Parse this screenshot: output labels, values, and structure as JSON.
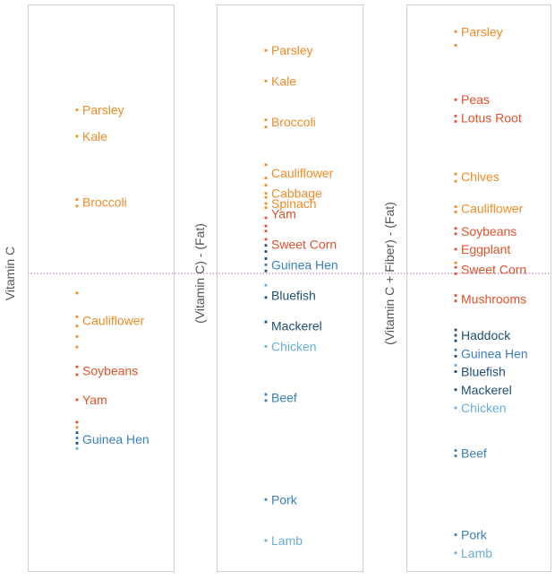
{
  "colors": {
    "orange": "#f28b25",
    "redorange": "#e2512a",
    "darkblue": "#1f4e79",
    "midblue": "#3a7fc1",
    "lightblue": "#6aaed6",
    "border": "#d0d0d0",
    "zero": "#9b4fa0"
  },
  "chart_data": [
    {
      "type": "scatter",
      "ylabel": "Vitamin C",
      "ylim": [
        -1.4,
        2.9
      ],
      "labels": [
        {
          "text": "Parsley",
          "y": 2.1,
          "color": "orange"
        },
        {
          "text": "Kale",
          "y": 1.9,
          "color": "orange"
        },
        {
          "text": "Broccoli",
          "y": 1.4,
          "color": "orange"
        },
        {
          "text": "Cauliflower",
          "y": 0.5,
          "color": "orange"
        },
        {
          "text": "Soybeans",
          "y": 0.12,
          "color": "redorange"
        },
        {
          "text": "Yam",
          "y": -0.1,
          "color": "redorange"
        },
        {
          "text": "Guinea Hen",
          "y": -0.4,
          "color": "midblue"
        }
      ],
      "points": [
        {
          "y": 2.1,
          "color": "orange"
        },
        {
          "y": 1.9,
          "color": "orange"
        },
        {
          "y": 1.42,
          "color": "orange"
        },
        {
          "y": 1.37,
          "color": "orange"
        },
        {
          "y": 0.71,
          "color": "orange"
        },
        {
          "y": 0.53,
          "color": "orange"
        },
        {
          "y": 0.46,
          "color": "orange"
        },
        {
          "y": 0.38,
          "color": "orange"
        },
        {
          "y": 0.3,
          "color": "orange"
        },
        {
          "y": 0.15,
          "color": "redorange"
        },
        {
          "y": 0.09,
          "color": "redorange"
        },
        {
          "y": -0.1,
          "color": "redorange"
        },
        {
          "y": -0.27,
          "color": "redorange"
        },
        {
          "y": -0.31,
          "color": "orange"
        },
        {
          "y": -0.35,
          "color": "darkblue"
        },
        {
          "y": -0.39,
          "color": "midblue"
        },
        {
          "y": -0.43,
          "color": "darkblue"
        },
        {
          "y": -0.47,
          "color": "lightblue"
        }
      ]
    },
    {
      "type": "scatter",
      "ylabel": "(Vitamin C) - (Fat)",
      "ylim": [
        -3.3,
        2.25
      ],
      "labels": [
        {
          "text": "Parsley",
          "y": 1.8,
          "color": "orange"
        },
        {
          "text": "Kale",
          "y": 1.5,
          "color": "orange"
        },
        {
          "text": "Broccoli",
          "y": 1.1,
          "color": "orange"
        },
        {
          "text": "Cauliflower",
          "y": 0.6,
          "color": "orange"
        },
        {
          "text": "Cabbage",
          "y": 0.4,
          "color": "orange"
        },
        {
          "text": "Spinach",
          "y": 0.3,
          "color": "orange"
        },
        {
          "text": "Yam",
          "y": 0.2,
          "color": "redorange"
        },
        {
          "text": "Sweet Corn",
          "y": -0.1,
          "color": "redorange"
        },
        {
          "text": "Guinea Hen",
          "y": -0.3,
          "color": "midblue"
        },
        {
          "text": "Bluefish",
          "y": -0.6,
          "color": "darkblue"
        },
        {
          "text": "Mackerel",
          "y": -0.9,
          "color": "darkblue"
        },
        {
          "text": "Chicken",
          "y": -1.1,
          "color": "lightblue"
        },
        {
          "text": "Beef",
          "y": -1.6,
          "color": "midblue"
        },
        {
          "text": "Pork",
          "y": -2.6,
          "color": "midblue"
        },
        {
          "text": "Lamb",
          "y": -3.0,
          "color": "lightblue"
        }
      ],
      "points": [
        {
          "y": 1.8,
          "color": "orange"
        },
        {
          "y": 1.5,
          "color": "orange"
        },
        {
          "y": 1.12,
          "color": "orange"
        },
        {
          "y": 1.05,
          "color": "orange"
        },
        {
          "y": 0.68,
          "color": "orange"
        },
        {
          "y": 0.55,
          "color": "orange"
        },
        {
          "y": 0.48,
          "color": "orange"
        },
        {
          "y": 0.4,
          "color": "orange"
        },
        {
          "y": 0.36,
          "color": "orange"
        },
        {
          "y": 0.3,
          "color": "orange"
        },
        {
          "y": 0.26,
          "color": "orange"
        },
        {
          "y": 0.16,
          "color": "redorange"
        },
        {
          "y": 0.08,
          "color": "redorange"
        },
        {
          "y": 0.03,
          "color": "redorange"
        },
        {
          "y": -0.05,
          "color": "redorange"
        },
        {
          "y": -0.11,
          "color": "darkblue"
        },
        {
          "y": -0.17,
          "color": "darkblue"
        },
        {
          "y": -0.24,
          "color": "darkblue"
        },
        {
          "y": -0.3,
          "color": "midblue"
        },
        {
          "y": -0.36,
          "color": "darkblue"
        },
        {
          "y": -0.5,
          "color": "lightblue"
        },
        {
          "y": -0.62,
          "color": "darkblue"
        },
        {
          "y": -0.86,
          "color": "darkblue"
        },
        {
          "y": -1.1,
          "color": "lightblue"
        },
        {
          "y": -1.57,
          "color": "midblue"
        },
        {
          "y": -1.63,
          "color": "midblue"
        },
        {
          "y": -2.6,
          "color": "midblue"
        },
        {
          "y": -3.0,
          "color": "lightblue"
        }
      ]
    },
    {
      "type": "scatter",
      "ylabel": "(Vitamin C + Fiber) - (Fat)",
      "ylim": [
        -3.3,
        2.95
      ],
      "labels": [
        {
          "text": "Parsley",
          "y": 2.65,
          "color": "orange"
        },
        {
          "text": "Peas",
          "y": 1.9,
          "color": "redorange"
        },
        {
          "text": "Lotus Root",
          "y": 1.7,
          "color": "redorange"
        },
        {
          "text": "Chives",
          "y": 1.05,
          "color": "orange"
        },
        {
          "text": "Cauliflower",
          "y": 0.7,
          "color": "orange"
        },
        {
          "text": "Soybeans",
          "y": 0.45,
          "color": "redorange"
        },
        {
          "text": "Eggplant",
          "y": 0.25,
          "color": "redorange"
        },
        {
          "text": "Sweet Corn",
          "y": 0.03,
          "color": "redorange"
        },
        {
          "text": "Mushrooms",
          "y": -0.3,
          "color": "redorange"
        },
        {
          "text": "Haddock",
          "y": -0.7,
          "color": "darkblue"
        },
        {
          "text": "Guinea Hen",
          "y": -0.9,
          "color": "midblue"
        },
        {
          "text": "Bluefish",
          "y": -1.1,
          "color": "darkblue"
        },
        {
          "text": "Mackerel",
          "y": -1.3,
          "color": "darkblue"
        },
        {
          "text": "Chicken",
          "y": -1.5,
          "color": "lightblue"
        },
        {
          "text": "Beef",
          "y": -2.0,
          "color": "midblue"
        },
        {
          "text": "Pork",
          "y": -2.9,
          "color": "midblue"
        },
        {
          "text": "Lamb",
          "y": -3.1,
          "color": "lightblue"
        }
      ],
      "points": [
        {
          "y": 2.65,
          "color": "orange"
        },
        {
          "y": 2.5,
          "color": "orange"
        },
        {
          "y": 1.9,
          "color": "redorange"
        },
        {
          "y": 1.72,
          "color": "redorange"
        },
        {
          "y": 1.66,
          "color": "redorange"
        },
        {
          "y": 1.08,
          "color": "orange"
        },
        {
          "y": 1.0,
          "color": "orange"
        },
        {
          "y": 0.72,
          "color": "orange"
        },
        {
          "y": 0.66,
          "color": "orange"
        },
        {
          "y": 0.48,
          "color": "redorange"
        },
        {
          "y": 0.42,
          "color": "redorange"
        },
        {
          "y": 0.25,
          "color": "redorange"
        },
        {
          "y": 0.1,
          "color": "orange"
        },
        {
          "y": 0.05,
          "color": "redorange"
        },
        {
          "y": -0.02,
          "color": "redorange"
        },
        {
          "y": -0.26,
          "color": "redorange"
        },
        {
          "y": -0.32,
          "color": "redorange"
        },
        {
          "y": -0.64,
          "color": "darkblue"
        },
        {
          "y": -0.7,
          "color": "darkblue"
        },
        {
          "y": -0.76,
          "color": "darkblue"
        },
        {
          "y": -0.86,
          "color": "midblue"
        },
        {
          "y": -0.93,
          "color": "darkblue"
        },
        {
          "y": -1.03,
          "color": "lightblue"
        },
        {
          "y": -1.1,
          "color": "darkblue"
        },
        {
          "y": -1.3,
          "color": "darkblue"
        },
        {
          "y": -1.5,
          "color": "lightblue"
        },
        {
          "y": -1.97,
          "color": "midblue"
        },
        {
          "y": -2.03,
          "color": "midblue"
        },
        {
          "y": -2.9,
          "color": "midblue"
        },
        {
          "y": -3.1,
          "color": "lightblue"
        }
      ]
    }
  ]
}
